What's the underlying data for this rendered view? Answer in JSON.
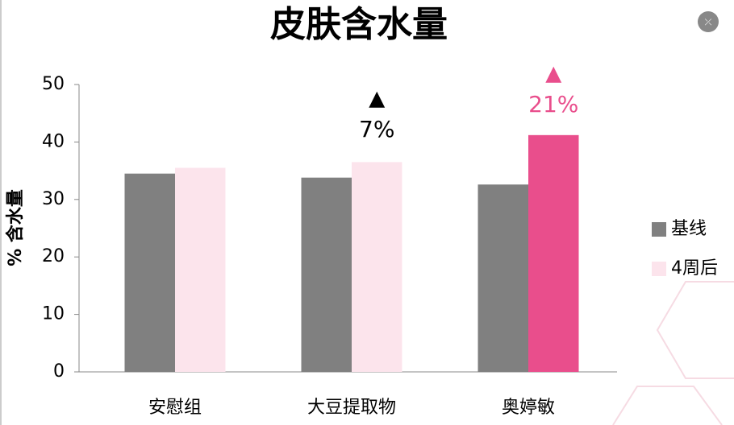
{
  "chart_data": {
    "type": "bar",
    "title": "皮肤含水量",
    "y_label": "% 含水量",
    "categories": [
      "安慰组",
      "大豆提取物",
      "奥婷敏"
    ],
    "series": [
      {
        "name": "基线",
        "color": "#808080",
        "values": [
          34.5,
          33.8,
          32.6
        ]
      },
      {
        "name": "4周后",
        "color": "#fce4ec",
        "colors": [
          "#fce4ec",
          "#fce4ec",
          "#e94e8c"
        ],
        "values": [
          35.5,
          36.5,
          41.2
        ]
      }
    ],
    "ylim": [
      0,
      50
    ],
    "yticks": [
      0,
      10,
      20,
      30,
      40,
      50
    ],
    "annotations": [
      {
        "marker": "▲",
        "label": "7%",
        "color": "#000000"
      },
      {
        "marker": "▲",
        "label": "21%",
        "color": "#e94e8c"
      }
    ]
  }
}
